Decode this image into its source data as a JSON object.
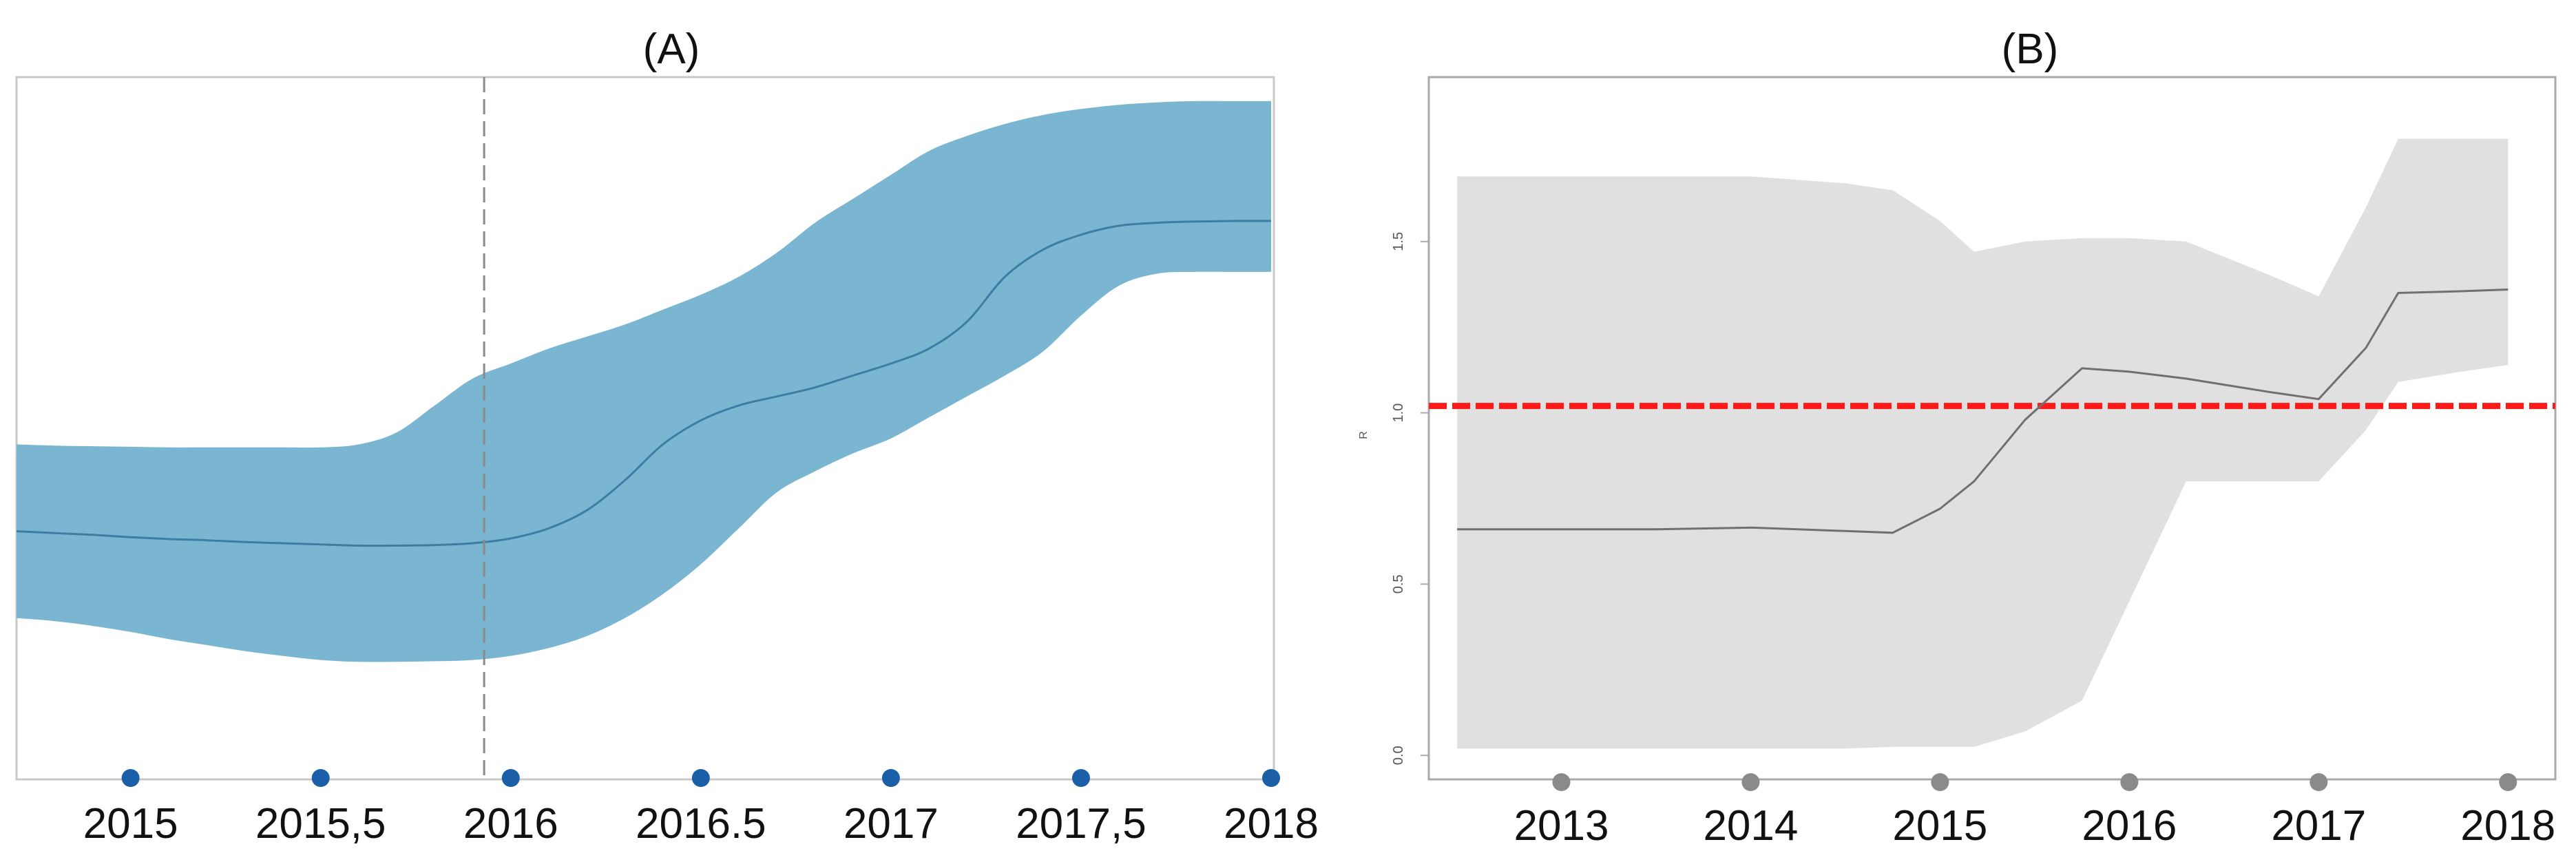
{
  "chart_data": [
    {
      "type": "area",
      "title": "(A)",
      "xlabel": "",
      "ylabel": "",
      "x_tick_labels": [
        "2015",
        "2015,5",
        "2016",
        "2016.5",
        "2017",
        "2017,5",
        "2018"
      ],
      "x_tick_values": [
        2015,
        2015.5,
        2016,
        2016.5,
        2017,
        2017.5,
        2018
      ],
      "xlim": [
        2014.7,
        2018.0
      ],
      "ylim": [
        0,
        100
      ],
      "vertical_reference_line": 2015.93,
      "grid": false,
      "legend": "none",
      "colors": {
        "band": "#7AB6D2",
        "line": "#3C7EA3",
        "marker": "#1B5FA8",
        "axis": "#C8C8C8"
      },
      "series": [
        {
          "x": [
            2014.7,
            2014.8,
            2014.9,
            2015.0,
            2015.1,
            2015.2,
            2015.3,
            2015.4,
            2015.5,
            2015.6,
            2015.7,
            2015.8,
            2015.9,
            2016.0,
            2016.1,
            2016.2,
            2016.3,
            2016.4,
            2016.5,
            2016.6,
            2016.7,
            2016.8,
            2016.9,
            2017.0,
            2017.1,
            2017.2,
            2017.3,
            2017.4,
            2017.5,
            2017.6,
            2017.7,
            2017.8,
            2017.9,
            2018.0
          ],
          "mean": [
            32.0,
            31.7,
            31.4,
            31.0,
            30.7,
            30.5,
            30.2,
            30.0,
            29.8,
            29.6,
            29.6,
            29.7,
            30.0,
            30.8,
            32.5,
            35.5,
            40.5,
            46.5,
            50.5,
            53.0,
            54.5,
            56.0,
            58.0,
            60.0,
            62.5,
            67.0,
            74.5,
            79.0,
            81.5,
            83.0,
            83.5,
            83.7,
            83.8,
            83.8
          ],
          "lower": [
            17.5,
            17.0,
            16.2,
            15.2,
            14.0,
            13.0,
            12.0,
            11.2,
            10.5,
            10.2,
            10.2,
            10.3,
            10.5,
            11.2,
            12.5,
            14.5,
            17.5,
            21.5,
            26.5,
            32.5,
            38.5,
            42.0,
            45.0,
            47.5,
            51.0,
            54.5,
            58.0,
            62.0,
            68.0,
            73.0,
            75.0,
            75.3,
            75.3,
            75.3
          ],
          "upper": [
            46.5,
            46.3,
            46.2,
            46.1,
            46.0,
            46.0,
            46.0,
            46.0,
            46.0,
            46.5,
            48.5,
            53.0,
            57.5,
            60.0,
            62.5,
            64.5,
            66.5,
            69.0,
            71.5,
            74.5,
            78.5,
            83.5,
            87.5,
            91.5,
            95.5,
            98.0,
            100.0,
            101.5,
            102.5,
            103.2,
            103.6,
            103.8,
            103.8,
            103.8
          ]
        }
      ],
      "markers_x": [
        2015,
        2015.5,
        2016,
        2016.5,
        2017,
        2017.5,
        2018
      ]
    },
    {
      "type": "area",
      "title": "(B)",
      "xlabel": "",
      "ylabel": "R",
      "x_tick_labels": [
        "2013",
        "2014",
        "2015",
        "2016",
        "2017",
        "2018"
      ],
      "x_tick_values": [
        2013,
        2014,
        2015,
        2016,
        2017,
        2018
      ],
      "y_tick_labels": [
        "0.0",
        "0.5",
        "1.0",
        "1.5"
      ],
      "y_tick_values": [
        0.0,
        0.5,
        1.0,
        1.5
      ],
      "xlim": [
        2012.3,
        2018.25
      ],
      "ylim": [
        -0.07,
        1.98
      ],
      "horizontal_reference_line": 1.02,
      "grid": false,
      "legend": "none",
      "colors": {
        "band": "#E0E0E0",
        "line": "#707070",
        "reference": "#FF1A1A",
        "marker": "#8A8A8A",
        "axis": "#AAAAAA"
      },
      "series": [
        {
          "x": [
            2012.45,
            2013.0,
            2013.5,
            2014.0,
            2014.5,
            2014.75,
            2015.0,
            2015.18,
            2015.45,
            2015.75,
            2016.0,
            2016.3,
            2016.75,
            2017.0,
            2017.25,
            2017.42,
            2017.75,
            2018.0
          ],
          "mean": [
            0.66,
            0.66,
            0.66,
            0.665,
            0.655,
            0.65,
            0.72,
            0.8,
            0.98,
            1.13,
            1.12,
            1.1,
            1.06,
            1.04,
            1.19,
            1.35,
            1.355,
            1.36
          ],
          "lower": [
            0.02,
            0.02,
            0.02,
            0.02,
            0.02,
            0.025,
            0.025,
            0.025,
            0.07,
            0.16,
            0.45,
            0.8,
            0.8,
            0.8,
            0.95,
            1.09,
            1.12,
            1.14
          ],
          "upper": [
            1.69,
            1.69,
            1.69,
            1.69,
            1.67,
            1.65,
            1.56,
            1.47,
            1.5,
            1.51,
            1.51,
            1.5,
            1.4,
            1.34,
            1.6,
            1.8,
            1.8,
            1.8
          ]
        }
      ],
      "markers_x": [
        2013,
        2014,
        2015,
        2016,
        2017,
        2018
      ]
    }
  ]
}
